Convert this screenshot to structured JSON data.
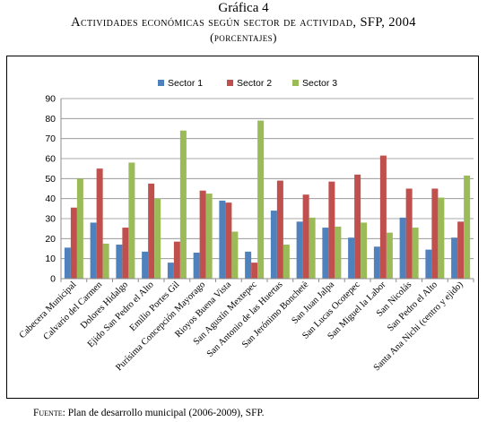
{
  "figure": {
    "number": "Gráfica 4",
    "title": "Actividades económicas según sector de actividad, SFP, 2004",
    "subtitle": "(porcentajes)"
  },
  "source": {
    "label": "Fuente:",
    "text": "Plan de desarrollo municipal (2006-2009), SFP."
  },
  "chart_data": {
    "type": "bar",
    "categories": [
      "Cabecera Municipal",
      "Calvario del Carmen",
      "Dolores Hidalgo",
      "Ejido San Pedro el Alto",
      "Emilio Portes Gil",
      "Purísima Concepción Mayorago",
      "Rioyos Buena Vista",
      "San Agustín Mextepec",
      "San Antonio de las Huertas",
      "San Jerónimo Bonchetè",
      "San Juan Jalpa",
      "San Lucas Ocotepec",
      "San Miguel la Labor",
      "San Nicolás",
      "San Pedro el Alto",
      "Santa Ana Nichi (centro y ejido)"
    ],
    "series": [
      {
        "name": "Sector 1",
        "color": "#4F81BD",
        "values": [
          15.5,
          28,
          17,
          13.5,
          8,
          13,
          39,
          13.5,
          34,
          28.5,
          25.5,
          20.5,
          16,
          30.5,
          14.5,
          20.5
        ]
      },
      {
        "name": "Sector 2",
        "color": "#C0504D",
        "values": [
          35.5,
          55,
          25.5,
          47.5,
          18.5,
          44,
          38,
          8,
          49,
          42,
          48.5,
          52,
          61.5,
          45,
          45,
          28.5
        ]
      },
      {
        "name": "Sector 3",
        "color": "#9BBB59",
        "values": [
          50,
          17.5,
          58,
          40,
          74,
          42.5,
          23.5,
          79,
          17,
          30.5,
          26,
          28,
          23,
          25.5,
          40.5,
          51.5
        ]
      }
    ],
    "ylim": [
      0,
      90
    ],
    "yticks": [
      0,
      10,
      20,
      30,
      40,
      50,
      60,
      70,
      80,
      90
    ],
    "grid": true,
    "legend": "top-center"
  }
}
